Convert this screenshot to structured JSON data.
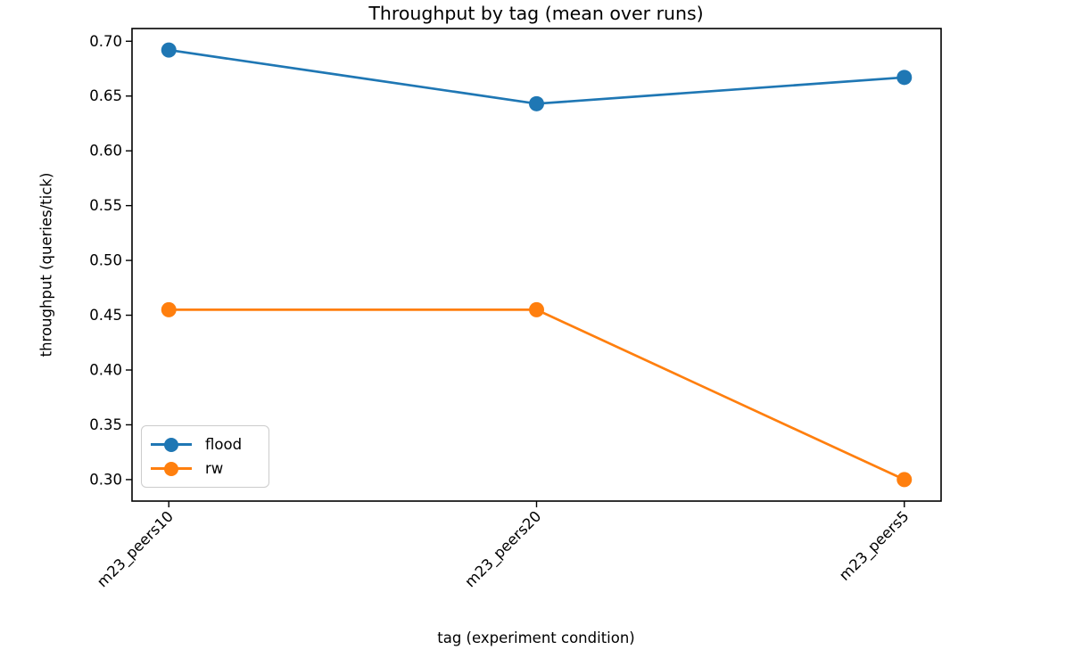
{
  "background_color": "#ffffff",
  "chart_data": {
    "type": "line",
    "title": "Throughput by tag (mean over runs)",
    "xlabel": "tag (experiment condition)",
    "ylabel": "throughput (queries/tick)",
    "categories": [
      "m23_peers10",
      "m23_peers20",
      "m23_peers5"
    ],
    "series": [
      {
        "name": "flood",
        "color": "#1f77b4",
        "values": [
          0.692,
          0.643,
          0.667
        ]
      },
      {
        "name": "rw",
        "color": "#ff7f0e",
        "values": [
          0.455,
          0.455,
          0.3
        ]
      }
    ],
    "yticks": [
      0.3,
      0.35,
      0.4,
      0.45,
      0.5,
      0.55,
      0.6,
      0.65,
      0.7
    ],
    "ylim": [
      0.2804,
      0.7116
    ],
    "xlim": [
      -0.1,
      2.1
    ],
    "grid": false,
    "marker": "circle",
    "tick_label_rotation": 45,
    "legend": {
      "position": "lower-left",
      "entries": [
        "flood",
        "rw"
      ]
    },
    "frame_color": "#000000",
    "text_color": "#000000"
  }
}
